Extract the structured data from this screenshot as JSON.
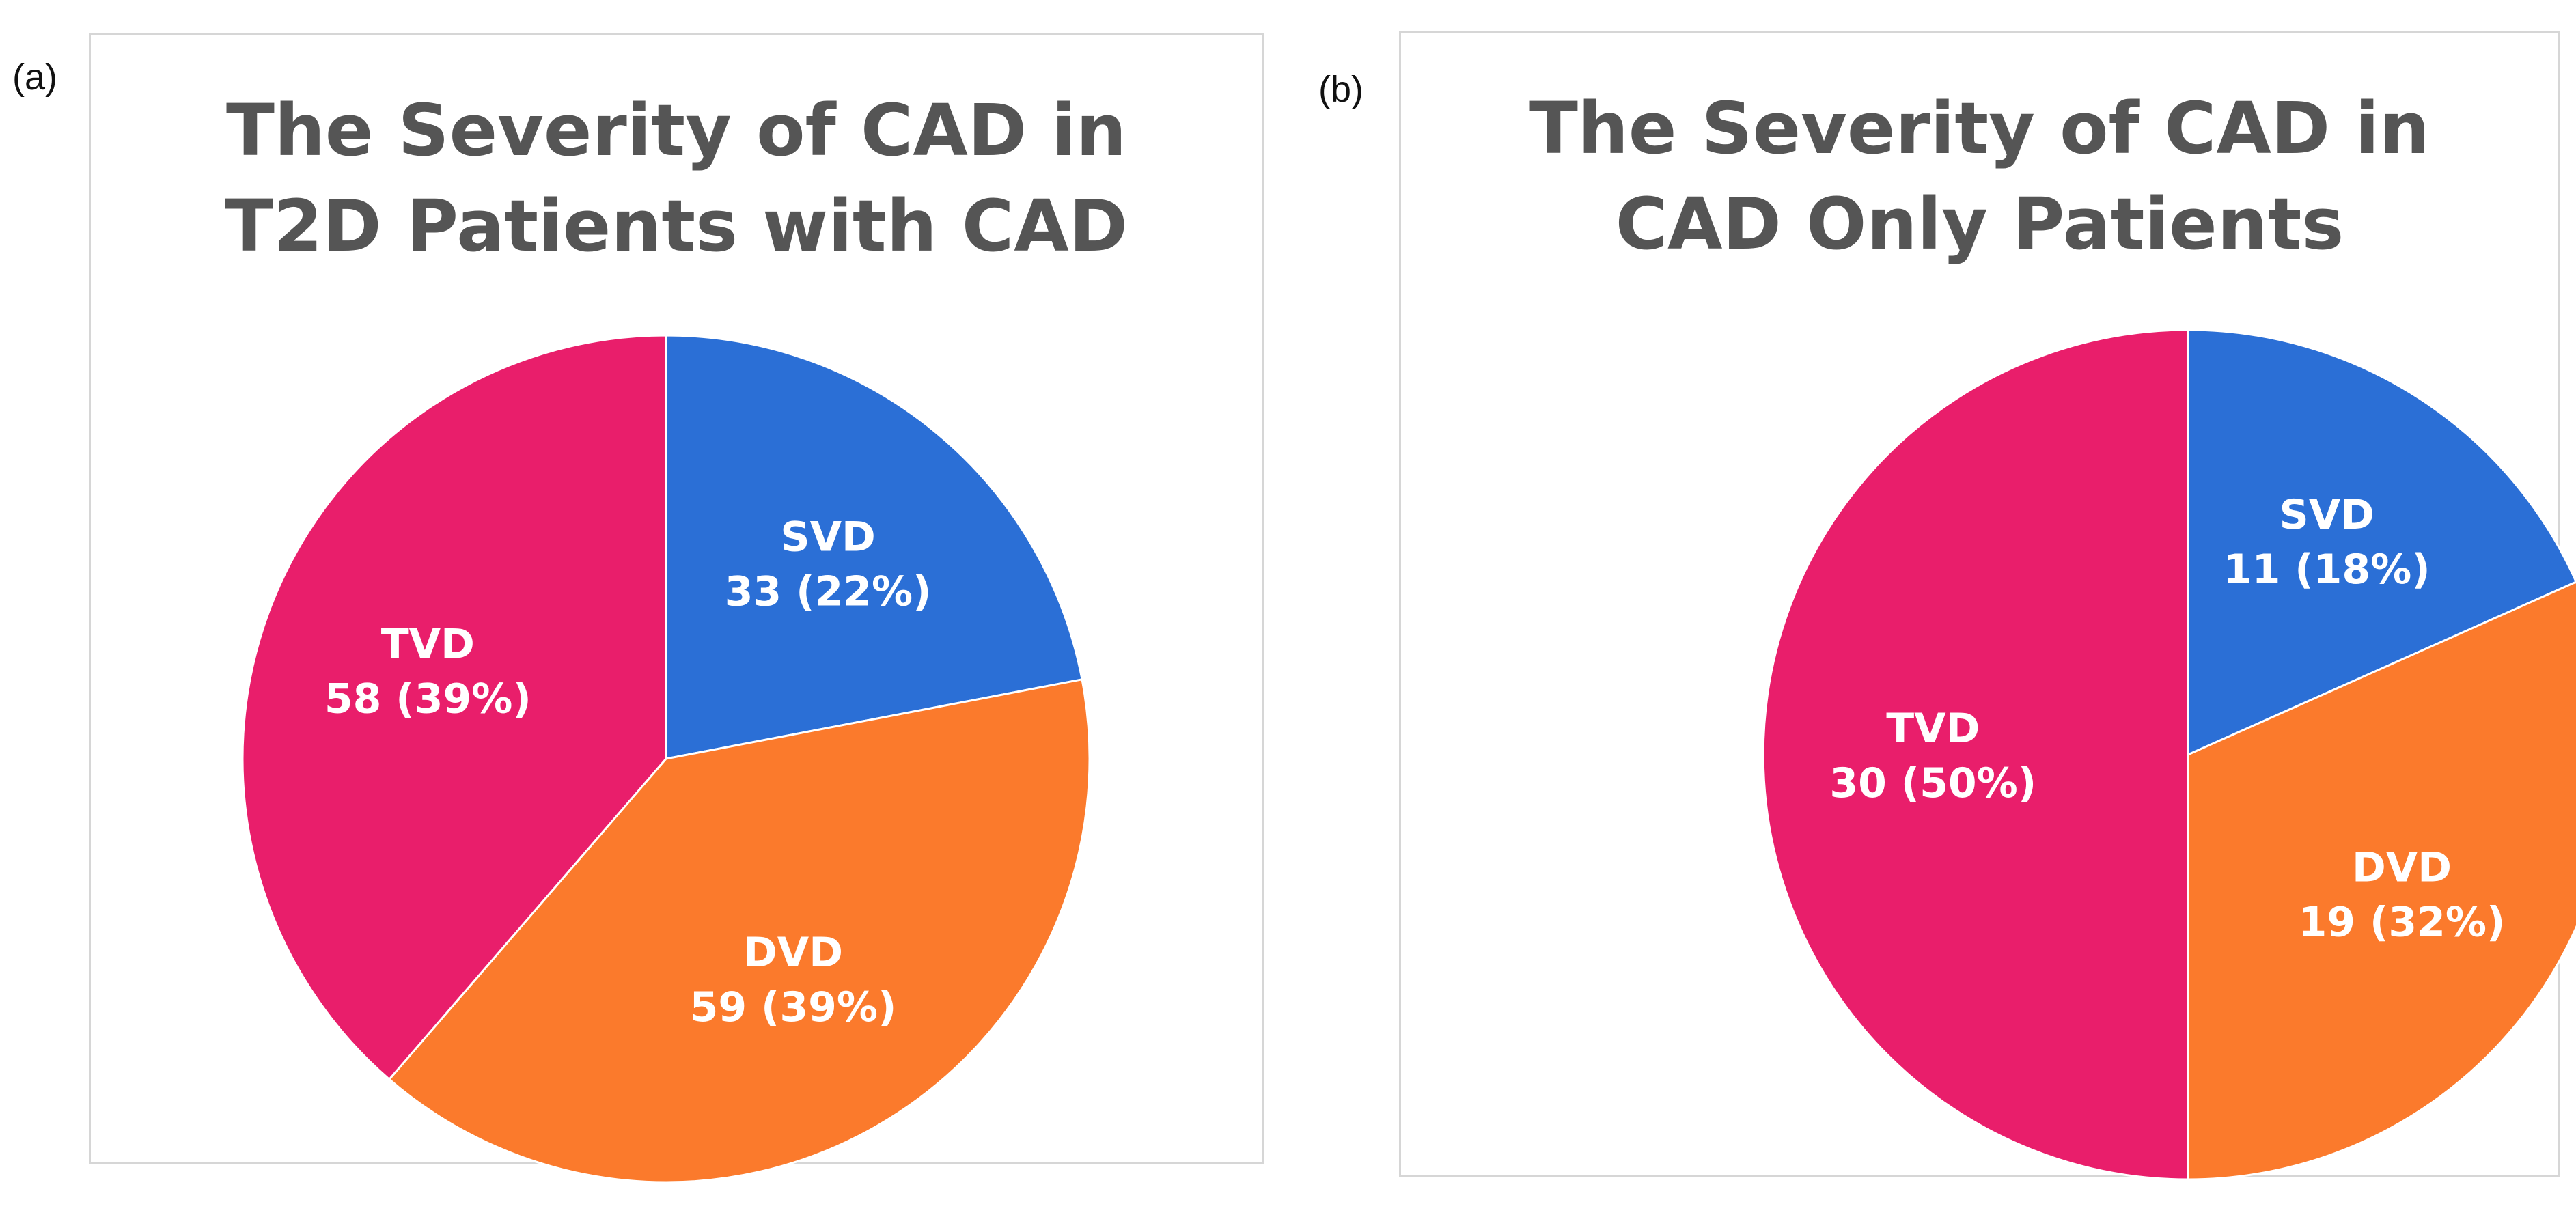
{
  "figure": {
    "panel_a_label": "(a)",
    "panel_b_label": "(b)"
  },
  "chart_data": [
    {
      "type": "pie",
      "title": "The Severity of CAD in T2D Patients with CAD",
      "title_lines": [
        "The Severity of CAD in",
        "T2D Patients with CAD"
      ],
      "categories": [
        "SVD",
        "DVD",
        "TVD"
      ],
      "values": [
        33,
        59,
        58
      ],
      "percent_labels": [
        "33 (22%)",
        "59 (39%)",
        "58 (39%)"
      ],
      "colors": [
        "#2b6fd6",
        "#fb7a2c",
        "#e91e6b"
      ],
      "start_angle_deg": 0,
      "direction": "clockwise"
    },
    {
      "type": "pie",
      "title": "The Severity of CAD in CAD Only Patients",
      "title_lines": [
        "The Severity of CAD in",
        "CAD Only Patients"
      ],
      "categories": [
        "SVD",
        "DVD",
        "TVD"
      ],
      "values": [
        11,
        19,
        30
      ],
      "percent_labels": [
        "11 (18%)",
        "19 (32%)",
        "30 (50%)"
      ],
      "colors": [
        "#2b6fd6",
        "#fb7a2c",
        "#e91e6b"
      ],
      "start_angle_deg": 0,
      "direction": "clockwise"
    }
  ]
}
